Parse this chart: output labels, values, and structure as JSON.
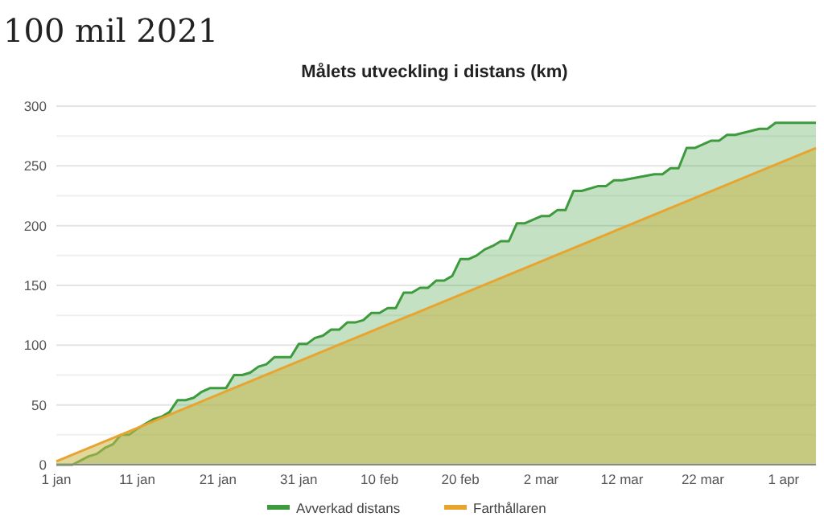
{
  "chart_data": {
    "type": "area",
    "title": "100 mil 2021",
    "subtitle": "Målets utveckling i distans (km)",
    "series": [
      {
        "name": "Avverkad distans",
        "color": "#3d9a3d",
        "x": [
          "--01-01",
          "--01-03",
          "--01-05",
          "--01-06",
          "--01-07",
          "--01-08",
          "--01-09",
          "--01-10",
          "--01-11",
          "--01-13",
          "--01-14",
          "--01-15",
          "--01-16",
          "--01-17",
          "--01-18",
          "--01-19",
          "--01-20",
          "--01-22",
          "--01-23",
          "--01-24",
          "--01-25",
          "--01-26",
          "--01-27",
          "--01-28",
          "--01-30",
          "--01-31",
          "--02-01",
          "--02-02",
          "--02-03",
          "--02-04",
          "--02-05",
          "--02-06",
          "--02-07",
          "--02-08",
          "--02-09",
          "--02-10",
          "--02-11",
          "--02-12",
          "--02-13",
          "--02-14",
          "--02-15",
          "--02-16",
          "--02-17",
          "--02-18",
          "--02-19",
          "--02-20",
          "--02-21",
          "--02-22",
          "--02-23",
          "--02-24",
          "--02-25",
          "--02-26",
          "--02-27",
          "--02-28",
          "--03-02",
          "--03-03",
          "--03-04",
          "--03-05",
          "--03-06",
          "--03-07",
          "--03-09",
          "--03-10",
          "--03-11",
          "--03-12",
          "--03-16",
          "--03-17",
          "--03-18",
          "--03-19",
          "--03-20",
          "--03-21",
          "--03-23",
          "--03-24",
          "--03-25",
          "--03-26",
          "--03-29",
          "--03-30",
          "--03-31",
          "--04-01",
          "--04-05"
        ],
        "values": [
          0,
          0,
          7,
          9,
          14,
          17,
          25,
          25,
          30,
          38,
          40,
          44,
          54,
          54,
          56,
          61,
          64,
          64,
          75,
          75,
          77,
          82,
          84,
          90,
          90,
          101,
          101,
          106,
          108,
          113,
          113,
          119,
          119,
          121,
          127,
          127,
          131,
          131,
          144,
          144,
          148,
          148,
          154,
          154,
          158,
          172,
          172,
          175,
          180,
          183,
          187,
          187,
          202,
          202,
          208,
          208,
          213,
          213,
          229,
          229,
          233,
          233,
          238,
          238,
          243,
          243,
          248,
          248,
          265,
          265,
          271,
          271,
          276,
          276,
          281,
          281,
          286,
          286,
          286
        ]
      },
      {
        "name": "Farthållaren",
        "color": "#e8a430",
        "x": [
          "--01-01",
          "--04-05"
        ],
        "values": [
          2.7,
          265
        ]
      }
    ],
    "xlim": [
      "--01-01",
      "--04-05"
    ],
    "xticks": [
      {
        "value": "--01-01",
        "label": "1 jan"
      },
      {
        "value": "--01-11",
        "label": "11 jan"
      },
      {
        "value": "--01-21",
        "label": "21 jan"
      },
      {
        "value": "--01-31",
        "label": "31 jan"
      },
      {
        "value": "--02-10",
        "label": "10 feb"
      },
      {
        "value": "--02-20",
        "label": "20 feb"
      },
      {
        "value": "--03-02",
        "label": "2 mar"
      },
      {
        "value": "--03-12",
        "label": "12 mar"
      },
      {
        "value": "--03-22",
        "label": "22 mar"
      },
      {
        "value": "--04-01",
        "label": "1 apr"
      }
    ],
    "ylim": [
      0,
      300
    ],
    "yticks": [
      0,
      {
        "value": 25,
        "label": null
      },
      50,
      {
        "value": 75,
        "label": null
      },
      100,
      {
        "value": 125,
        "label": null
      },
      150,
      {
        "value": 175,
        "label": null
      },
      200,
      {
        "value": 225,
        "label": null
      },
      250,
      {
        "value": 275,
        "label": null
      },
      300
    ],
    "grid": "y",
    "legend": "bottom"
  }
}
